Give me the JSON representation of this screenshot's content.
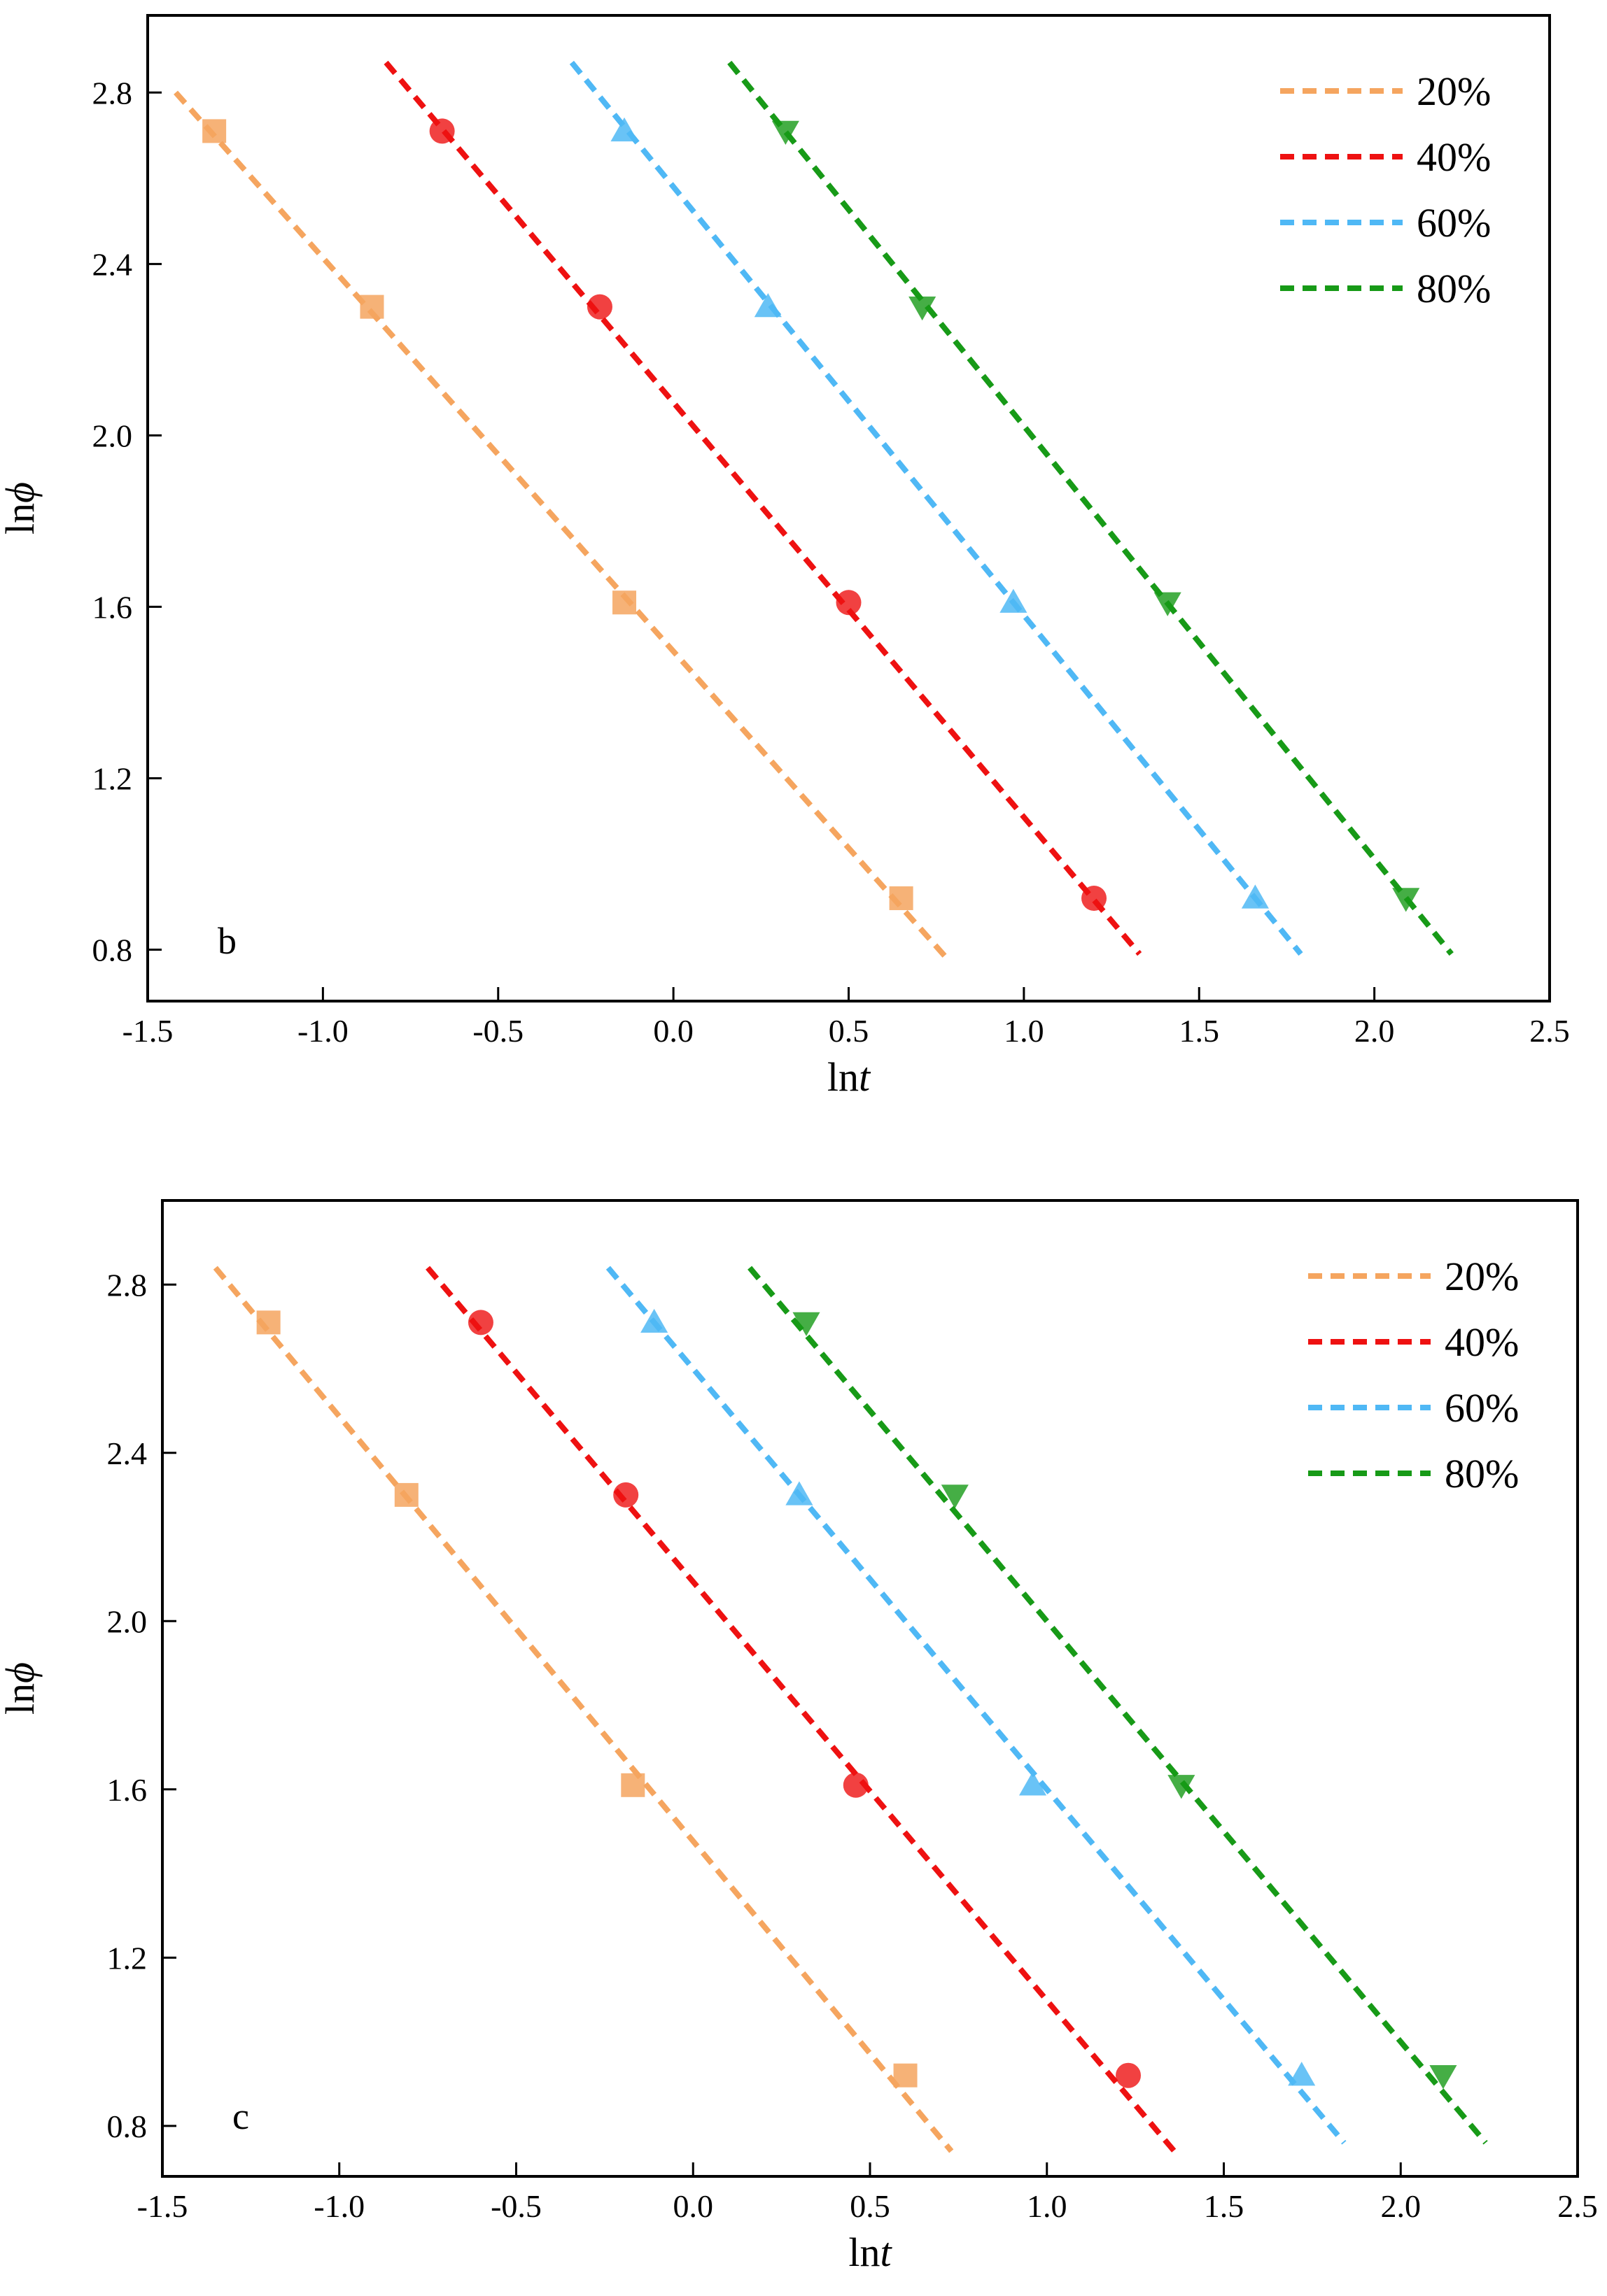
{
  "chart_data": [
    {
      "type": "scatter",
      "panel_label": "b",
      "xlabel_prefix": "ln",
      "xlabel_var": "t",
      "ylabel_prefix": "ln",
      "ylabel_var": "ϕ",
      "xlim": [
        -1.5,
        2.5
      ],
      "ylim": [
        0.68,
        2.98
      ],
      "xticks": [
        -1.5,
        -1.0,
        -0.5,
        0.0,
        0.5,
        1.0,
        1.5,
        2.0,
        2.5
      ],
      "xtick_labels": [
        "-1.5",
        "-1.0",
        "-0.5",
        "0.0",
        "0.5",
        "1.0",
        "1.5",
        "2.0",
        "2.5"
      ],
      "yticks": [
        0.8,
        1.2,
        1.6,
        2.0,
        2.4,
        2.8
      ],
      "ytick_labels": [
        "0.8",
        "1.2",
        "1.6",
        "2.0",
        "2.4",
        "2.8"
      ],
      "legend_position": "top-right",
      "series": [
        {
          "name": "20%",
          "color": "#f5a55f",
          "marker": "square",
          "x": [
            -1.31,
            -0.86,
            -0.14,
            0.65
          ],
          "y": [
            2.71,
            2.3,
            1.61,
            0.92
          ],
          "fit": [
            [
              -1.42,
              2.8
            ],
            [
              0.78,
              0.78
            ]
          ]
        },
        {
          "name": "40%",
          "color": "#ee1111",
          "marker": "circle",
          "x": [
            -0.66,
            -0.21,
            0.5,
            1.2
          ],
          "y": [
            2.71,
            2.3,
            1.61,
            0.92
          ],
          "fit": [
            [
              -0.82,
              2.87
            ],
            [
              1.33,
              0.79
            ]
          ]
        },
        {
          "name": "60%",
          "color": "#4fb8f5",
          "marker": "triangle-up",
          "x": [
            -0.14,
            0.27,
            0.97,
            1.66
          ],
          "y": [
            2.71,
            2.3,
            1.61,
            0.92
          ],
          "fit": [
            [
              -0.29,
              2.87
            ],
            [
              1.79,
              0.79
            ]
          ]
        },
        {
          "name": "80%",
          "color": "#179a17",
          "marker": "triangle-down",
          "x": [
            0.32,
            0.71,
            1.41,
            2.09
          ],
          "y": [
            2.71,
            2.3,
            1.61,
            0.92
          ],
          "fit": [
            [
              0.16,
              2.87
            ],
            [
              2.22,
              0.79
            ]
          ]
        }
      ]
    },
    {
      "type": "scatter",
      "panel_label": "c",
      "xlabel_prefix": "ln",
      "xlabel_var": "t",
      "ylabel_prefix": "ln",
      "ylabel_var": "ϕ",
      "xlim": [
        -1.5,
        2.5
      ],
      "ylim": [
        0.68,
        3.0
      ],
      "xticks": [
        -1.5,
        -1.0,
        -0.5,
        0.0,
        0.5,
        1.0,
        1.5,
        2.0,
        2.5
      ],
      "xtick_labels": [
        "-1.5",
        "-1.0",
        "-0.5",
        "0.0",
        "0.5",
        "1.0",
        "1.5",
        "2.0",
        "2.5"
      ],
      "yticks": [
        0.8,
        1.2,
        1.6,
        2.0,
        2.4,
        2.8
      ],
      "ytick_labels": [
        "0.8",
        "1.2",
        "1.6",
        "2.0",
        "2.4",
        "2.8"
      ],
      "legend_position": "top-right",
      "series": [
        {
          "name": "20%",
          "color": "#f5a55f",
          "marker": "square",
          "x": [
            -1.2,
            -0.81,
            -0.17,
            0.6
          ],
          "y": [
            2.71,
            2.3,
            1.61,
            0.92
          ],
          "fit": [
            [
              -1.35,
              2.84
            ],
            [
              0.73,
              0.74
            ]
          ]
        },
        {
          "name": "40%",
          "color": "#ee1111",
          "marker": "circle",
          "x": [
            -0.6,
            -0.19,
            0.46,
            1.23
          ],
          "y": [
            2.71,
            2.3,
            1.61,
            0.92
          ],
          "fit": [
            [
              -0.75,
              2.84
            ],
            [
              1.36,
              0.74
            ]
          ]
        },
        {
          "name": "60%",
          "color": "#4fb8f5",
          "marker": "triangle-up",
          "x": [
            -0.11,
            0.3,
            0.96,
            1.72
          ],
          "y": [
            2.71,
            2.3,
            1.61,
            0.92
          ],
          "fit": [
            [
              -0.24,
              2.84
            ],
            [
              1.84,
              0.76
            ]
          ]
        },
        {
          "name": "80%",
          "color": "#179a17",
          "marker": "triangle-down",
          "x": [
            0.32,
            0.74,
            1.38,
            2.12
          ],
          "y": [
            2.71,
            2.3,
            1.61,
            0.92
          ],
          "fit": [
            [
              0.16,
              2.84
            ],
            [
              2.24,
              0.76
            ]
          ]
        }
      ]
    }
  ]
}
